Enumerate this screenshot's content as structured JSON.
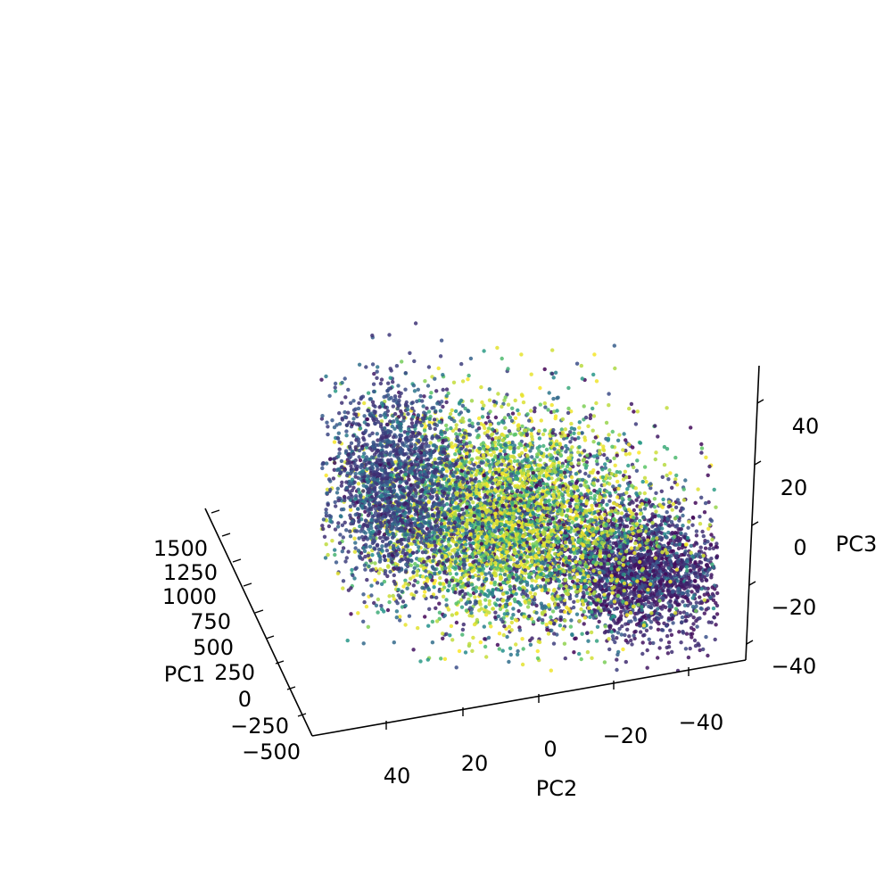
{
  "chart_data": {
    "type": "scatter",
    "projection": "3d",
    "title": "",
    "axes": {
      "x": {
        "label": "PC2",
        "range": [
          50,
          -50
        ],
        "ticks": [
          "40",
          "20",
          "0",
          "−20",
          "−40"
        ]
      },
      "y": {
        "label": "PC3",
        "range": [
          -40,
          55
        ],
        "ticks": [
          "−40",
          "−20",
          "0",
          "20",
          "40"
        ]
      },
      "z": {
        "label": "PC1",
        "range": [
          -500,
          1650
        ],
        "ticks": [
          "−500",
          "−250",
          "0",
          "250",
          "500",
          "750",
          "1000",
          "1250",
          "1500"
        ]
      }
    },
    "colormap": "viridis",
    "colormap_colors": [
      "#440154",
      "#3b528b",
      "#21918c",
      "#5ec962",
      "#fde725"
    ],
    "point_count_approx": 9000,
    "clusters": [
      {
        "pc2_center": -25,
        "pc3_center": -10,
        "pc2_spread": 11,
        "pc3_spread": 9,
        "color_value_mean": 0.02,
        "count": 2200
      },
      {
        "pc2_center": 10,
        "pc3_center": 5,
        "pc2_spread": 18,
        "pc3_spread": 15,
        "color_value_mean": 0.55,
        "count": 5200
      },
      {
        "pc2_center": 40,
        "pc3_center": 15,
        "pc2_spread": 8,
        "pc3_spread": 14,
        "color_value_mean": 0.12,
        "count": 1600
      }
    ],
    "grid": false,
    "legend": "none"
  }
}
